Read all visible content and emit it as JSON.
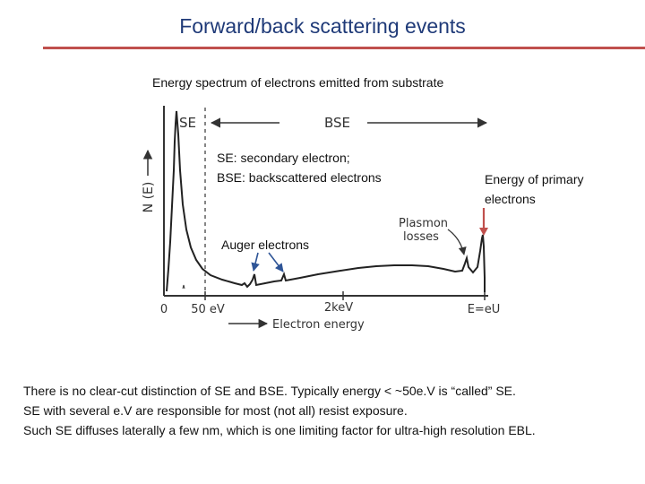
{
  "slide": {
    "title": "Forward/back scattering events",
    "heading": "Energy spectrum of electrons emitted from substrate"
  },
  "figure": {
    "y_axis_label": "N (E)",
    "x_axis_label": "Electron energy",
    "tick_labels": [
      "0",
      "50 eV",
      "2keV",
      "E=eU"
    ],
    "region_se": "SE",
    "region_bse": "BSE",
    "plasmon_label_line1": "Plasmon",
    "plasmon_label_line2": "losses"
  },
  "annotations": {
    "se_bse_line1": "SE: secondary electron;",
    "se_bse_line2": "BSE: backscattered electrons",
    "primary_line1": "Energy of primary",
    "primary_line2": "electrons",
    "auger": "Auger electrons"
  },
  "notes": [
    "There is no clear-cut distinction of SE and BSE. Typically energy < ~50e.V is “called” SE.",
    "SE with several e.V are responsible for most (not all) resist exposure.",
    "Such SE diffuses laterally a few nm, which is one limiting factor for ultra-high resolution EBL."
  ],
  "colors": {
    "title": "#1f3a78",
    "rule": "#c0504d",
    "primary_arrow": "#c0504d",
    "auger_arrows": "#2f5597"
  }
}
